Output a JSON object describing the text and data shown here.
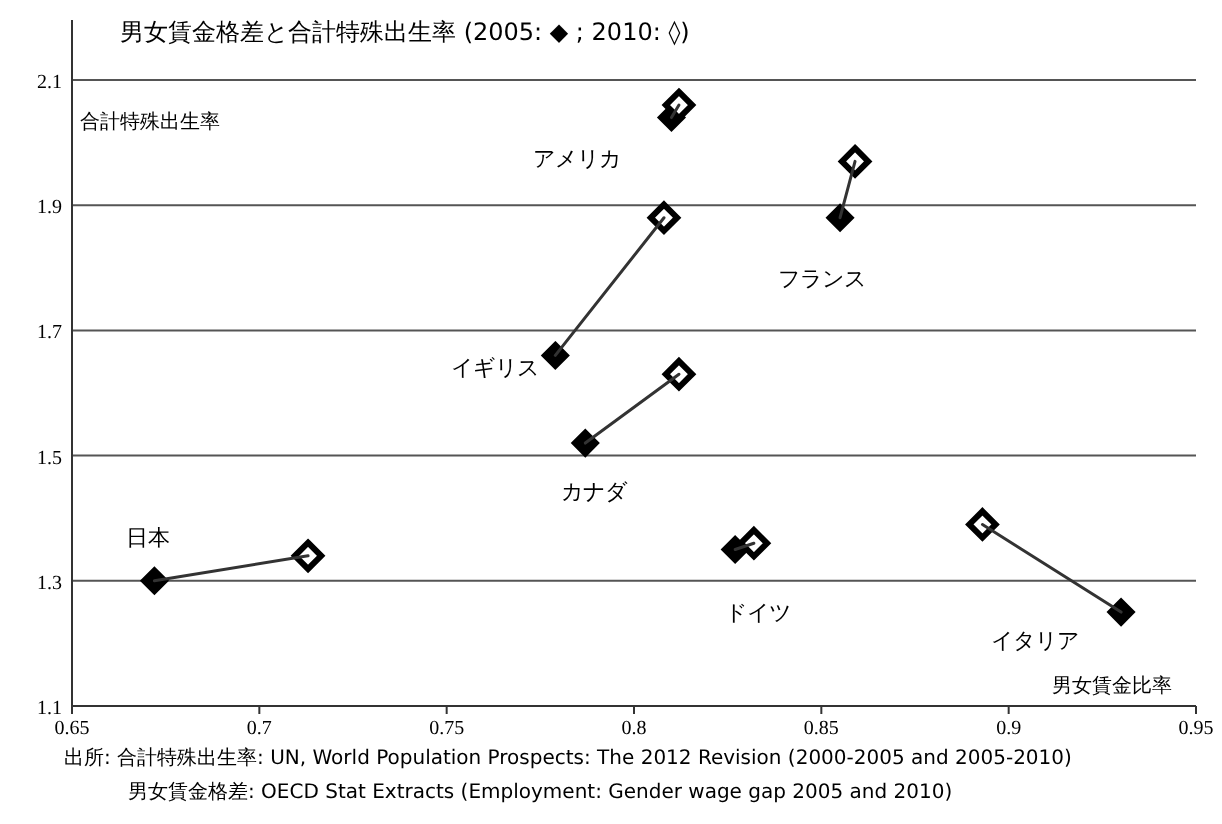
{
  "chart_data": {
    "type": "scatter",
    "title": "男女賃金格差と合計特殊出生率 (2005: ◆ ; 2010: ◊)",
    "xlabel": "男女賃金比率",
    "ylabel": "合計特殊出生率",
    "xlim": [
      0.65,
      0.95
    ],
    "xticks": [
      0.65,
      0.7,
      0.75,
      0.8,
      0.85,
      0.9,
      0.95
    ],
    "ylim": [
      1.1,
      2.1
    ],
    "yticks": [
      1.1,
      1.3,
      1.5,
      1.7,
      1.9,
      2.1
    ],
    "grid": "y",
    "series": [
      {
        "type": "line",
        "name": "アメリカ",
        "color": "#333333",
        "marker": "none",
        "x": [
          0.81,
          0.812
        ],
        "values": [
          2.04,
          2.06
        ]
      },
      {
        "type": "line",
        "name": "フランス",
        "color": "#333333",
        "marker": "none",
        "x": [
          0.855,
          0.859
        ],
        "values": [
          1.88,
          1.97
        ]
      },
      {
        "type": "line",
        "name": "イギリス",
        "color": "#333333",
        "marker": "none",
        "x": [
          0.779,
          0.808
        ],
        "values": [
          1.66,
          1.88
        ]
      },
      {
        "type": "line",
        "name": "カナダ",
        "color": "#333333",
        "marker": "none",
        "x": [
          0.787,
          0.812
        ],
        "values": [
          1.52,
          1.63
        ]
      },
      {
        "type": "line",
        "name": "日本",
        "color": "#333333",
        "marker": "none",
        "x": [
          0.672,
          0.713
        ],
        "values": [
          1.3,
          1.34
        ]
      },
      {
        "type": "line",
        "name": "ドイツ",
        "color": "#333333",
        "marker": "none",
        "x": [
          0.827,
          0.832
        ],
        "values": [
          1.35,
          1.36
        ]
      },
      {
        "type": "line",
        "name": "イタリア",
        "color": "#333333",
        "marker": "none",
        "x": [
          0.93,
          0.893
        ],
        "values": [
          1.25,
          1.39
        ]
      },
      {
        "color": "#000000",
        "marker": "diamond",
        "x": [
          0.81,
          0.855,
          0.779,
          0.787,
          0.672,
          0.827,
          0.93
        ],
        "values": [
          2.04,
          1.88,
          1.66,
          1.52,
          1.3,
          1.35,
          1.25
        ]
      },
      {
        "color": "#ffffff",
        "marker": "diamond",
        "x": [
          0.812,
          0.859,
          0.808,
          0.812,
          0.713,
          0.832,
          0.893
        ],
        "values": [
          2.06,
          1.97,
          1.88,
          1.63,
          1.34,
          1.36,
          1.39
        ]
      }
    ],
    "annotations": [
      "出所: 合計特殊出生率: UN, World Population Prospects: The 2012 Revision (2000-2005 and 2005-2010)",
      "男女賃金格差: OECD Stat Extracts (Employment: Gender wage gap 2005 and 2010)"
    ]
  }
}
